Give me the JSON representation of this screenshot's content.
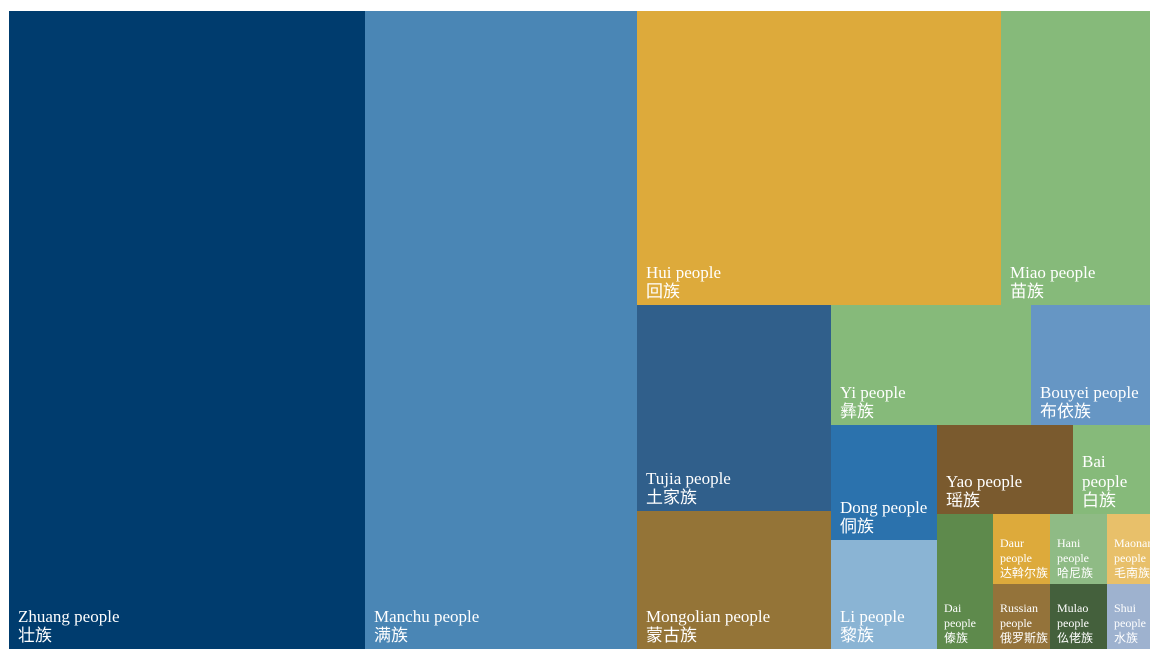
{
  "chart_data": {
    "type": "treemap",
    "title": "",
    "items": [
      {
        "name": "Zhuang people",
        "name_zh": "壮族",
        "color": "#003c6e"
      },
      {
        "name": "Manchu people",
        "name_zh": "满族",
        "color": "#4a86b5"
      },
      {
        "name": "Hui people",
        "name_zh": "回族",
        "color": "#ddaa3b"
      },
      {
        "name": "Miao people",
        "name_zh": "苗族",
        "color": "#86ba7a"
      },
      {
        "name": "Tujia people",
        "name_zh": "土家族",
        "color": "#305f8b"
      },
      {
        "name": "Yi people",
        "name_zh": "彝族",
        "color": "#86ba7a"
      },
      {
        "name": "Bouyei people",
        "name_zh": "布依族",
        "color": "#6696c4"
      },
      {
        "name": "Mongolian people",
        "name_zh": "蒙古族",
        "color": "#947437"
      },
      {
        "name": "Dong people",
        "name_zh": "侗族",
        "color": "#2b72ad"
      },
      {
        "name": "Yao people",
        "name_zh": "瑶族",
        "color": "#7a5a2e"
      },
      {
        "name": "Bai people",
        "name_zh": "白族",
        "color": "#86ba7a"
      },
      {
        "name": "Li people",
        "name_zh": "黎族",
        "color": "#8ab4d4"
      },
      {
        "name": "Dai people",
        "name_zh": "傣族",
        "color": "#5e8a4c"
      },
      {
        "name": "Daur people",
        "name_zh": "达斡尔族",
        "color": "#ddaa3b"
      },
      {
        "name": "Hani people",
        "name_zh": "哈尼族",
        "color": "#8fbb85"
      },
      {
        "name": "Maonan people",
        "name_zh": "毛南族",
        "color": "#e8c06a"
      },
      {
        "name": "Russian people",
        "name_zh": "俄罗斯族",
        "color": "#94733a"
      },
      {
        "name": "Mulao people",
        "name_zh": "仫佬族",
        "color": "#44603c"
      },
      {
        "name": "Shui people",
        "name_zh": "水族",
        "color": "#9eb2cf"
      }
    ]
  }
}
